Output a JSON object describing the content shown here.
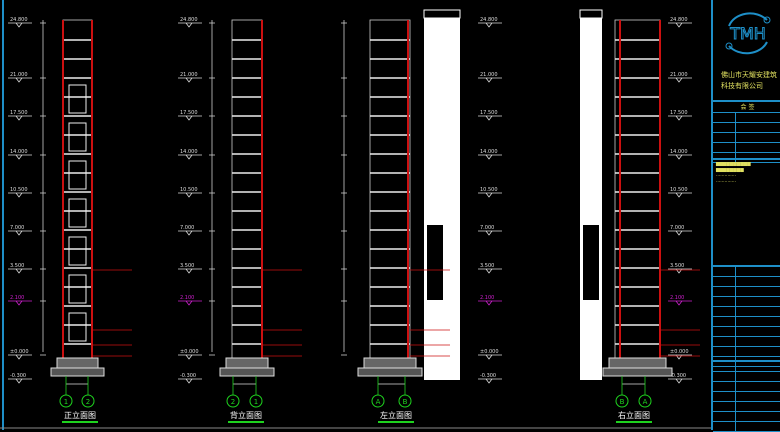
{
  "views": [
    {
      "title": "正立面图",
      "axes": [
        "1",
        "2"
      ],
      "levels": [
        "24.800",
        "21.000",
        "17.500",
        "14.000",
        "10.500",
        "7.000",
        "3.500",
        "2.100",
        "±0.000",
        "-0.300"
      ]
    },
    {
      "title": "背立面图",
      "axes": [
        "2",
        "1"
      ],
      "levels": [
        "24.800",
        "21.000",
        "17.500",
        "14.000",
        "10.500",
        "7.000",
        "3.500",
        "2.100",
        "±0.000",
        "-0.300"
      ]
    },
    {
      "title": "左立面图",
      "axes": [
        "A",
        "B"
      ],
      "levels": [
        "24.800",
        "21.000",
        "17.500",
        "14.000",
        "10.500",
        "7.000",
        "3.500",
        "2.100",
        "±0.000",
        "-0.300"
      ]
    },
    {
      "title": "右立面图",
      "axes": [
        "B",
        "A"
      ],
      "levels": [
        "24.800",
        "21.000",
        "17.500",
        "14.000",
        "10.500",
        "7.000",
        "3.500",
        "2.100",
        "±0.000",
        "-0.300"
      ]
    }
  ],
  "title_block": {
    "logo": "TMH",
    "company_line1": "佛山市天耀安建筑",
    "company_line2": "科技有限公司",
    "approval_header": "会 签",
    "colors": {
      "frame": "#1e8fc8",
      "text": "#e0e060",
      "red": "#cc1010",
      "magenta": "#d020d0",
      "axis": "#1ed21e"
    }
  }
}
